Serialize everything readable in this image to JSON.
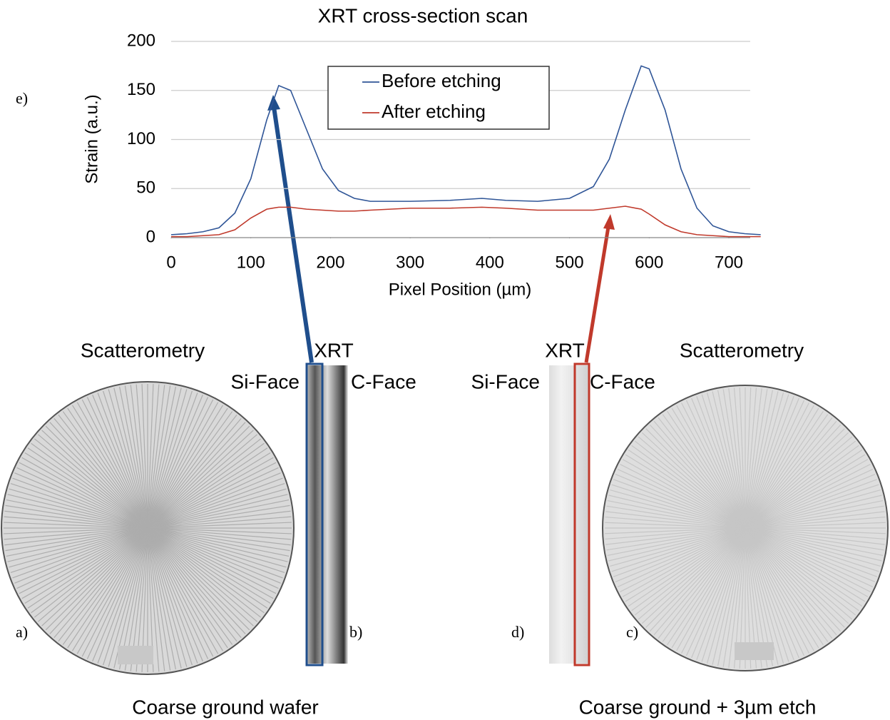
{
  "chart_data": {
    "type": "line",
    "title": "XRT cross-section scan",
    "x_label": "Pixel Position (µm)",
    "y_label": "Strain (a.u.)",
    "x": [
      0,
      20,
      40,
      60,
      80,
      100,
      120,
      135,
      150,
      170,
      190,
      210,
      230,
      250,
      300,
      350,
      390,
      420,
      460,
      500,
      530,
      550,
      570,
      590,
      600,
      620,
      640,
      660,
      680,
      700,
      720,
      740
    ],
    "series": [
      {
        "name": "Before etching",
        "color": "#2f5597",
        "values": [
          3,
          4,
          6,
          10,
          25,
          60,
          120,
          155,
          150,
          110,
          70,
          48,
          40,
          37,
          37,
          38,
          40,
          38,
          37,
          40,
          52,
          80,
          130,
          175,
          172,
          130,
          70,
          30,
          12,
          6,
          4,
          3
        ]
      },
      {
        "name": "After etching",
        "color": "#c0392b",
        "values": [
          1,
          1,
          2,
          3,
          8,
          20,
          29,
          31,
          31,
          29,
          28,
          27,
          27,
          28,
          30,
          30,
          31,
          30,
          28,
          28,
          28,
          30,
          32,
          29,
          24,
          13,
          6,
          3,
          2,
          1,
          1,
          1
        ]
      }
    ],
    "xlim": [
      0,
      740
    ],
    "xticks": [
      0,
      100,
      200,
      300,
      400,
      500,
      600,
      700
    ],
    "ylim": [
      0,
      200
    ],
    "yticks": [
      0,
      50,
      100,
      150,
      200
    ],
    "grid": true,
    "legend": "top"
  },
  "figure": {
    "panel_e": "e)",
    "left": {
      "panel_a": "a)",
      "panel_b": "b)",
      "scatterometry": "Scatterometry",
      "xrt": "XRT",
      "si_face": "Si-Face",
      "c_face": "C-Face",
      "caption": "Coarse ground wafer"
    },
    "right": {
      "panel_c": "c)",
      "panel_d": "d)",
      "scatterometry": "Scatterometry",
      "xrt": "XRT",
      "si_face": "Si-Face",
      "c_face": "C-Face",
      "caption": "Coarse ground + 3µm etch"
    }
  }
}
